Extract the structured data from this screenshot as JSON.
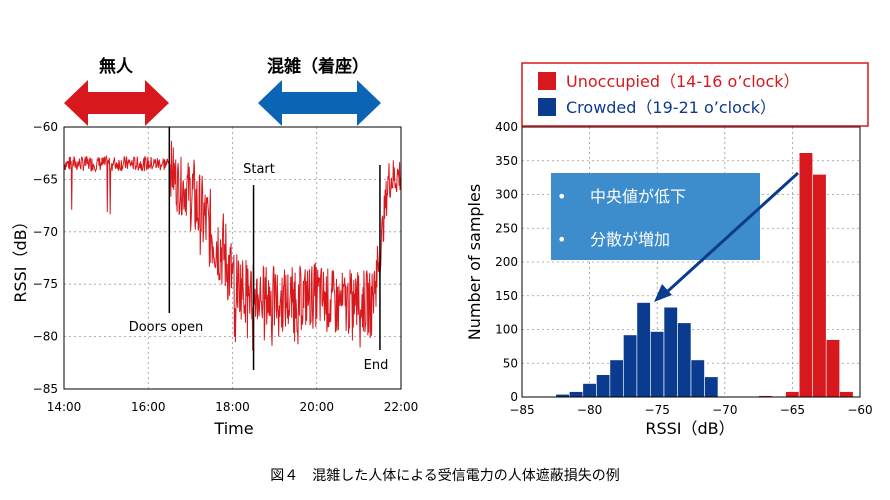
{
  "arrows": {
    "unoccupied_label": "無人",
    "crowded_label": "混雑（着座）",
    "unoccupied_color": "#d7191e",
    "crowded_color": "#0b64b4"
  },
  "legend": {
    "unoccupied": "Unoccupied（14-16 o’clock）",
    "crowded": "Crowded（19-21 o’clock）"
  },
  "callout": {
    "bullet": "•",
    "items": [
      "中央値が低下",
      "分散が増加"
    ],
    "color": "#3d8ccc"
  },
  "caption": "図４　混雑した人体による受信電力の人体遮蔽損失の例",
  "chart_data": [
    {
      "type": "line",
      "xlabel": "Time",
      "ylabel": "RSSI（dB）",
      "xlim": [
        14,
        22
      ],
      "ylim": [
        -85,
        -60
      ],
      "x_ticks": [
        "14:00",
        "16:00",
        "18:00",
        "20:00",
        "22:00"
      ],
      "y_ticks": [
        "−60",
        "−65",
        "−70",
        "−75",
        "−80",
        "−85"
      ],
      "grid": true,
      "color": "#d7191e",
      "series": [
        {
          "x": [
            14.0,
            14.5,
            15.0,
            15.5,
            16.0,
            16.5,
            16.7,
            17.0,
            17.2,
            17.5,
            17.8,
            18.0,
            18.3,
            18.6,
            19.0,
            19.5,
            20.0,
            20.5,
            21.0,
            21.3,
            21.5,
            21.7,
            22.0
          ],
          "values": [
            -63.5,
            -63.5,
            -63.5,
            -63.5,
            -63.5,
            -63.5,
            -65.5,
            -66.0,
            -68.0,
            -70.0,
            -72.0,
            -74.5,
            -75.5,
            -76.0,
            -76.5,
            -76.5,
            -76.0,
            -77.0,
            -76.5,
            -77.0,
            -72.0,
            -65.0,
            -64.5
          ]
        }
      ],
      "annotations": [
        {
          "label": "Doors open",
          "x": 16.5
        },
        {
          "label": "Start",
          "x": 18.5
        },
        {
          "label": "End",
          "x": 21.5
        }
      ]
    },
    {
      "type": "bar",
      "xlabel": "RSSI（dB）",
      "ylabel": "Number of samples",
      "xlim": [
        -85,
        -60
      ],
      "ylim": [
        0,
        400
      ],
      "x_ticks": [
        "−85",
        "−80",
        "−75",
        "−70",
        "−65",
        "−60"
      ],
      "y_ticks": [
        "0",
        "50",
        "100",
        "150",
        "200",
        "250",
        "300",
        "350",
        "400"
      ],
      "grid": true,
      "series": [
        {
          "name": "Unoccupied（14-16 o’clock）",
          "color": "#d7191e",
          "bins": [
            -67,
            -65,
            -64,
            -63,
            -62,
            -61
          ],
          "values": [
            2,
            8,
            362,
            330,
            85,
            8
          ]
        },
        {
          "name": "Crowded（19-21 o’clock）",
          "color": "#0b3b8e",
          "bins": [
            -82,
            -81,
            -80,
            -79,
            -78,
            -77,
            -76,
            -75,
            -74,
            -73,
            -72,
            -71
          ],
          "values": [
            4,
            8,
            20,
            33,
            55,
            92,
            140,
            97,
            133,
            110,
            55,
            30
          ]
        }
      ]
    }
  ]
}
